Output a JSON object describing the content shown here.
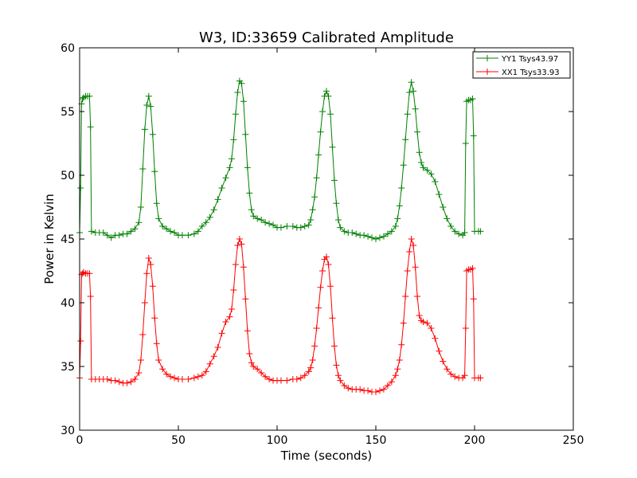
{
  "chart_data": {
    "type": "line",
    "title": "W3, ID:33659 Calibrated Amplitude",
    "xlabel": "Time (seconds)",
    "ylabel": "Power in Kelvin",
    "xlim": [
      0,
      250
    ],
    "ylim": [
      30,
      60
    ],
    "xticks": [
      0,
      50,
      100,
      150,
      200,
      250
    ],
    "yticks": [
      30,
      35,
      40,
      45,
      50,
      55,
      60
    ],
    "grid": false,
    "legend_position": "top-right",
    "marker": "plus",
    "series": [
      {
        "name": "YY1 Tsys43.97",
        "color": "#008000",
        "points": [
          [
            0,
            45.5
          ],
          [
            0.5,
            49.0
          ],
          [
            1,
            55.6
          ],
          [
            1.5,
            56.0
          ],
          [
            2,
            56.1
          ],
          [
            3,
            56.2
          ],
          [
            4,
            56.2
          ],
          [
            5,
            56.2
          ],
          [
            5.5,
            53.8
          ],
          [
            6,
            45.6
          ],
          [
            8,
            45.5
          ],
          [
            10,
            45.5
          ],
          [
            12,
            45.5
          ],
          [
            14,
            45.3
          ],
          [
            16,
            45.1
          ],
          [
            18,
            45.3
          ],
          [
            20,
            45.3
          ],
          [
            22,
            45.4
          ],
          [
            24,
            45.4
          ],
          [
            26,
            45.6
          ],
          [
            28,
            45.8
          ],
          [
            30,
            46.3
          ],
          [
            31,
            47.5
          ],
          [
            32,
            50.5
          ],
          [
            33,
            53.6
          ],
          [
            34,
            55.5
          ],
          [
            35,
            56.2
          ],
          [
            36,
            55.4
          ],
          [
            37,
            53.2
          ],
          [
            38,
            50.3
          ],
          [
            39,
            47.8
          ],
          [
            40,
            46.6
          ],
          [
            42,
            46.0
          ],
          [
            44,
            45.8
          ],
          [
            46,
            45.6
          ],
          [
            48,
            45.5
          ],
          [
            50,
            45.3
          ],
          [
            52,
            45.3
          ],
          [
            55,
            45.3
          ],
          [
            58,
            45.4
          ],
          [
            60,
            45.6
          ],
          [
            62,
            46.0
          ],
          [
            64,
            46.3
          ],
          [
            66,
            46.7
          ],
          [
            68,
            47.3
          ],
          [
            70,
            48.1
          ],
          [
            72,
            49.0
          ],
          [
            74,
            49.8
          ],
          [
            76,
            50.6
          ],
          [
            77,
            51.3
          ],
          [
            78,
            52.8
          ],
          [
            79,
            54.8
          ],
          [
            80,
            56.5
          ],
          [
            81,
            57.4
          ],
          [
            82,
            57.2
          ],
          [
            83,
            55.8
          ],
          [
            84,
            53.2
          ],
          [
            85,
            50.6
          ],
          [
            86,
            48.6
          ],
          [
            87,
            47.3
          ],
          [
            88,
            46.8
          ],
          [
            90,
            46.6
          ],
          [
            92,
            46.5
          ],
          [
            94,
            46.3
          ],
          [
            96,
            46.2
          ],
          [
            98,
            46.1
          ],
          [
            100,
            45.9
          ],
          [
            102,
            45.9
          ],
          [
            105,
            46.0
          ],
          [
            108,
            46.0
          ],
          [
            110,
            45.9
          ],
          [
            112,
            45.9
          ],
          [
            114,
            46.0
          ],
          [
            116,
            46.1
          ],
          [
            117,
            46.5
          ],
          [
            118,
            47.3
          ],
          [
            119,
            48.3
          ],
          [
            120,
            49.8
          ],
          [
            121,
            51.6
          ],
          [
            122,
            53.4
          ],
          [
            123,
            55.0
          ],
          [
            124,
            56.2
          ],
          [
            125,
            56.6
          ],
          [
            126,
            56.2
          ],
          [
            127,
            54.8
          ],
          [
            128,
            52.2
          ],
          [
            129,
            49.6
          ],
          [
            130,
            47.8
          ],
          [
            131,
            46.5
          ],
          [
            132,
            45.9
          ],
          [
            134,
            45.6
          ],
          [
            136,
            45.5
          ],
          [
            138,
            45.5
          ],
          [
            140,
            45.4
          ],
          [
            142,
            45.3
          ],
          [
            144,
            45.3
          ],
          [
            146,
            45.2
          ],
          [
            148,
            45.1
          ],
          [
            150,
            45.0
          ],
          [
            152,
            45.1
          ],
          [
            154,
            45.2
          ],
          [
            156,
            45.4
          ],
          [
            158,
            45.6
          ],
          [
            160,
            46.0
          ],
          [
            161,
            46.6
          ],
          [
            162,
            47.6
          ],
          [
            163,
            49.0
          ],
          [
            164,
            50.8
          ],
          [
            165,
            52.8
          ],
          [
            166,
            54.8
          ],
          [
            167,
            56.5
          ],
          [
            168,
            57.3
          ],
          [
            169,
            56.6
          ],
          [
            170,
            55.2
          ],
          [
            171,
            53.4
          ],
          [
            172,
            51.8
          ],
          [
            173,
            51.0
          ],
          [
            174,
            50.6
          ],
          [
            176,
            50.4
          ],
          [
            178,
            50.1
          ],
          [
            180,
            49.5
          ],
          [
            182,
            48.5
          ],
          [
            184,
            47.5
          ],
          [
            186,
            46.6
          ],
          [
            188,
            46.0
          ],
          [
            190,
            45.6
          ],
          [
            192,
            45.4
          ],
          [
            194,
            45.3
          ],
          [
            195,
            45.5
          ],
          [
            195.5,
            52.5
          ],
          [
            196,
            55.8
          ],
          [
            197,
            55.9
          ],
          [
            198,
            55.9
          ],
          [
            199,
            56.0
          ],
          [
            199.5,
            53.1
          ],
          [
            200,
            45.6
          ],
          [
            202,
            45.6
          ],
          [
            203,
            45.6
          ]
        ]
      },
      {
        "name": "XX1 Tsys33.93",
        "color": "#ff0000",
        "points": [
          [
            0,
            34.1
          ],
          [
            0.5,
            37.0
          ],
          [
            1,
            42.2
          ],
          [
            1.5,
            42.3
          ],
          [
            2,
            42.4
          ],
          [
            3,
            42.3
          ],
          [
            4,
            42.3
          ],
          [
            5,
            42.3
          ],
          [
            5.5,
            40.5
          ],
          [
            6,
            34.0
          ],
          [
            8,
            34.0
          ],
          [
            10,
            34.0
          ],
          [
            12,
            34.0
          ],
          [
            14,
            34.0
          ],
          [
            16,
            33.9
          ],
          [
            18,
            33.9
          ],
          [
            20,
            33.8
          ],
          [
            22,
            33.7
          ],
          [
            24,
            33.7
          ],
          [
            26,
            33.8
          ],
          [
            28,
            34.0
          ],
          [
            30,
            34.5
          ],
          [
            31,
            35.5
          ],
          [
            32,
            37.5
          ],
          [
            33,
            40.0
          ],
          [
            34,
            42.3
          ],
          [
            35,
            43.5
          ],
          [
            36,
            43.0
          ],
          [
            37,
            41.3
          ],
          [
            38,
            38.8
          ],
          [
            39,
            36.8
          ],
          [
            40,
            35.5
          ],
          [
            42,
            34.8
          ],
          [
            44,
            34.4
          ],
          [
            46,
            34.2
          ],
          [
            48,
            34.1
          ],
          [
            50,
            34.0
          ],
          [
            52,
            34.0
          ],
          [
            55,
            34.0
          ],
          [
            58,
            34.1
          ],
          [
            60,
            34.2
          ],
          [
            62,
            34.3
          ],
          [
            64,
            34.6
          ],
          [
            66,
            35.2
          ],
          [
            68,
            35.8
          ],
          [
            70,
            36.5
          ],
          [
            72,
            37.6
          ],
          [
            74,
            38.5
          ],
          [
            76,
            38.9
          ],
          [
            77,
            39.5
          ],
          [
            78,
            41.0
          ],
          [
            79,
            43.0
          ],
          [
            80,
            44.5
          ],
          [
            81,
            45.0
          ],
          [
            82,
            44.6
          ],
          [
            83,
            42.8
          ],
          [
            84,
            40.3
          ],
          [
            85,
            37.8
          ],
          [
            86,
            36.0
          ],
          [
            87,
            35.3
          ],
          [
            88,
            35.0
          ],
          [
            90,
            34.8
          ],
          [
            92,
            34.5
          ],
          [
            94,
            34.2
          ],
          [
            96,
            34.0
          ],
          [
            98,
            33.9
          ],
          [
            100,
            33.9
          ],
          [
            102,
            33.9
          ],
          [
            105,
            33.9
          ],
          [
            108,
            34.0
          ],
          [
            110,
            34.0
          ],
          [
            112,
            34.1
          ],
          [
            114,
            34.3
          ],
          [
            116,
            34.6
          ],
          [
            117,
            34.9
          ],
          [
            118,
            35.5
          ],
          [
            119,
            36.6
          ],
          [
            120,
            38.0
          ],
          [
            121,
            39.6
          ],
          [
            122,
            41.2
          ],
          [
            123,
            42.5
          ],
          [
            124,
            43.4
          ],
          [
            125,
            43.6
          ],
          [
            126,
            43.0
          ],
          [
            127,
            41.3
          ],
          [
            128,
            38.8
          ],
          [
            129,
            36.6
          ],
          [
            130,
            35.1
          ],
          [
            131,
            34.3
          ],
          [
            132,
            33.9
          ],
          [
            134,
            33.5
          ],
          [
            136,
            33.3
          ],
          [
            138,
            33.2
          ],
          [
            140,
            33.2
          ],
          [
            142,
            33.2
          ],
          [
            144,
            33.1
          ],
          [
            146,
            33.1
          ],
          [
            148,
            33.0
          ],
          [
            150,
            33.0
          ],
          [
            152,
            33.1
          ],
          [
            154,
            33.2
          ],
          [
            156,
            33.5
          ],
          [
            158,
            33.8
          ],
          [
            160,
            34.3
          ],
          [
            161,
            34.8
          ],
          [
            162,
            35.5
          ],
          [
            163,
            36.7
          ],
          [
            164,
            38.4
          ],
          [
            165,
            40.5
          ],
          [
            166,
            42.5
          ],
          [
            167,
            44.0
          ],
          [
            168,
            45.0
          ],
          [
            169,
            44.5
          ],
          [
            170,
            42.8
          ],
          [
            171,
            40.5
          ],
          [
            172,
            39.0
          ],
          [
            173,
            38.6
          ],
          [
            174,
            38.5
          ],
          [
            176,
            38.4
          ],
          [
            178,
            38.0
          ],
          [
            180,
            37.2
          ],
          [
            182,
            36.2
          ],
          [
            184,
            35.4
          ],
          [
            186,
            34.8
          ],
          [
            188,
            34.4
          ],
          [
            190,
            34.2
          ],
          [
            192,
            34.1
          ],
          [
            194,
            34.1
          ],
          [
            195,
            34.3
          ],
          [
            195.5,
            38.0
          ],
          [
            196,
            42.5
          ],
          [
            197,
            42.6
          ],
          [
            198,
            42.6
          ],
          [
            199,
            42.7
          ],
          [
            199.5,
            40.3
          ],
          [
            200,
            34.1
          ],
          [
            202,
            34.1
          ],
          [
            203,
            34.1
          ]
        ]
      }
    ]
  }
}
